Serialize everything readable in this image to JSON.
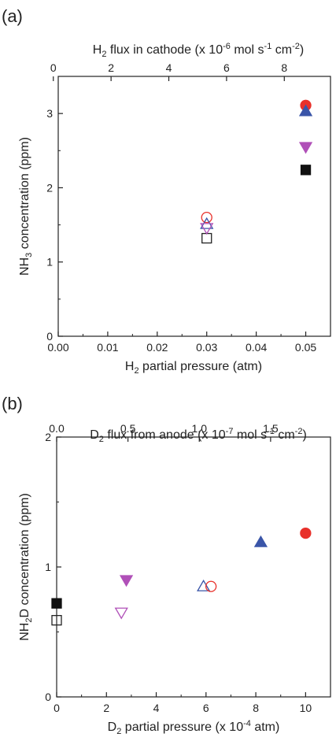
{
  "chart_data": [
    {
      "type": "scatter",
      "panel_label": "(a)",
      "xlabel": "H2 partial pressure (atm)",
      "xlabel_parts": {
        "main": "H",
        "sub": "2",
        "rest": " partial pressure (atm)"
      },
      "top_xlabel": "H2 flux in cathode (x 10-6 mol s-1 cm-2)",
      "top_xlabel_parts": {
        "a": "H",
        "a_sub": "2",
        "b": " flux in cathode (x 10",
        "b_sup": "-6",
        "c": " mol s",
        "c_sup": "-1",
        "d": " cm",
        "d_sup": "-2",
        "e": ")"
      },
      "ylabel": "NH3 concentration (ppm)",
      "ylabel_parts": {
        "main": "NH",
        "sub": "3",
        "rest": " concentration (ppm)"
      },
      "xlim": [
        0.0,
        0.055
      ],
      "ylim": [
        0,
        3.5
      ],
      "top_xlim": [
        0.17,
        9.6
      ],
      "x_ticks": [
        "0.00",
        "0.01",
        "0.02",
        "0.03",
        "0.04",
        "0.05"
      ],
      "y_ticks": [
        "0",
        "1",
        "2",
        "3"
      ],
      "top_ticks": [
        "0",
        "2",
        "4",
        "6",
        "8"
      ],
      "series": [
        {
          "marker": "square",
          "filled": false,
          "color": "#222222",
          "points": [
            [
              0.03,
              1.32
            ]
          ]
        },
        {
          "marker": "circle",
          "filled": false,
          "color": "#e8302a",
          "points": [
            [
              0.03,
              1.6
            ]
          ]
        },
        {
          "marker": "triangle-up",
          "filled": false,
          "color": "#3a55a8",
          "points": [
            [
              0.03,
              1.51
            ]
          ]
        },
        {
          "marker": "triangle-down",
          "filled": false,
          "color": "#b050b8",
          "points": [
            [
              0.03,
              1.46
            ]
          ]
        },
        {
          "marker": "square",
          "filled": true,
          "color": "#111111",
          "points": [
            [
              0.05,
              2.24
            ]
          ]
        },
        {
          "marker": "circle",
          "filled": true,
          "color": "#e8302a",
          "points": [
            [
              0.05,
              3.11
            ]
          ]
        },
        {
          "marker": "triangle-up",
          "filled": true,
          "color": "#3a55a8",
          "points": [
            [
              0.05,
              3.03
            ]
          ]
        },
        {
          "marker": "triangle-down",
          "filled": true,
          "color": "#b050b8",
          "points": [
            [
              0.05,
              2.55
            ]
          ]
        }
      ]
    },
    {
      "type": "scatter",
      "panel_label": "(b)",
      "xlabel": "D2 partial pressure (x 10-4 atm)",
      "xlabel_parts": {
        "a": "D",
        "a_sub": "2",
        "b": " partial pressure (x 10",
        "b_sup": "-4",
        "c": " atm)"
      },
      "top_xlabel": "D2 flux from anode (x 10-7 mol s-1 cm-2)",
      "top_xlabel_parts": {
        "a": "D",
        "a_sub": "2",
        "b": " flux from anode (x 10",
        "b_sup": "-7",
        "c": " mol s",
        "c_sup": "-1",
        "d": " cm",
        "d_sup": "-2",
        "e": ")"
      },
      "ylabel": "NH2D concentration (ppm)",
      "ylabel_parts": {
        "a": "NH",
        "a_sub": "2",
        "b": "D concentration (ppm)"
      },
      "xlim": [
        0,
        11
      ],
      "ylim": [
        0,
        2
      ],
      "top_xlim": [
        0.0,
        1.92
      ],
      "x_ticks": [
        "0",
        "2",
        "4",
        "6",
        "8",
        "10"
      ],
      "y_ticks": [
        "0",
        "1",
        "2"
      ],
      "top_ticks": [
        "0.0",
        "0.5",
        "1.0",
        "1.5"
      ],
      "series": [
        {
          "marker": "square",
          "filled": false,
          "color": "#222222",
          "points": [
            [
              0.0,
              0.59
            ]
          ]
        },
        {
          "marker": "square",
          "filled": true,
          "color": "#111111",
          "points": [
            [
              0.0,
              0.72
            ]
          ]
        },
        {
          "marker": "triangle-down",
          "filled": false,
          "color": "#b050b8",
          "points": [
            [
              2.6,
              0.65
            ]
          ]
        },
        {
          "marker": "triangle-down",
          "filled": true,
          "color": "#b050b8",
          "points": [
            [
              2.8,
              0.9
            ]
          ]
        },
        {
          "marker": "triangle-up",
          "filled": false,
          "color": "#3a55a8",
          "points": [
            [
              5.9,
              0.85
            ]
          ]
        },
        {
          "marker": "circle",
          "filled": false,
          "color": "#e8302a",
          "points": [
            [
              6.2,
              0.85
            ]
          ]
        },
        {
          "marker": "triangle-up",
          "filled": true,
          "color": "#3a55a8",
          "points": [
            [
              8.2,
              1.19
            ]
          ]
        },
        {
          "marker": "circle",
          "filled": true,
          "color": "#e8302a",
          "points": [
            [
              10.0,
              1.26
            ]
          ]
        }
      ]
    }
  ]
}
